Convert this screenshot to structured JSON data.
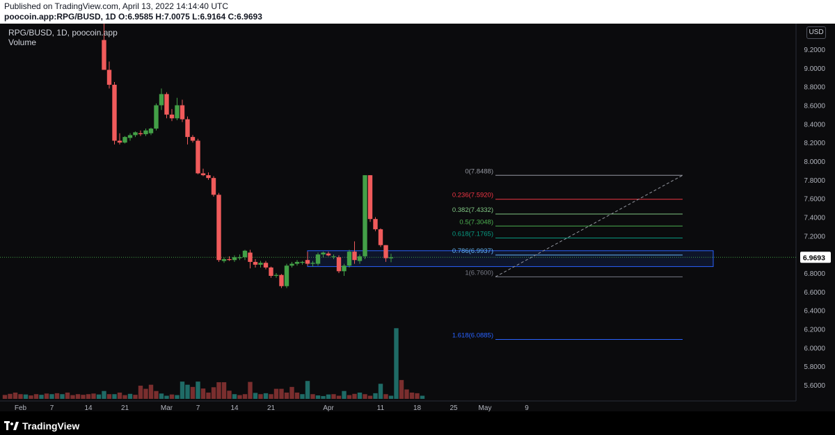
{
  "header": {
    "published": "Published on TradingView.com, April 13, 2022 14:14:40 UTC",
    "symbol_prefix": "poocoin.app:RPG/BUSD, 1D",
    "ohlc": {
      "o_label": "O:",
      "o": "6.9585",
      "h_label": "H:",
      "h": "7.0075",
      "l_label": "L:",
      "l": "6.9164",
      "c_label": "C:",
      "c": "6.9693"
    }
  },
  "legend": {
    "title": "RPG/BUSD, 1D, poocoin.app",
    "volume": "Volume"
  },
  "currency": "USD",
  "brand": "TradingView",
  "colors": {
    "up": "#26a69a",
    "down": "#ef5350",
    "candle_up": "#43a047",
    "candle_down": "#f05b5b",
    "vol_up": "#1f6b66",
    "vol_down": "#7a2e2e"
  },
  "chart_data": {
    "type": "candlestick",
    "x_ticks": [
      "Feb",
      "7",
      "14",
      "21",
      "Mar",
      "7",
      "14",
      "21",
      "Apr",
      "11",
      "18",
      "25",
      "May",
      "9"
    ],
    "y_ticks": [
      "9.2000",
      "9.0000",
      "8.8000",
      "8.6000",
      "8.4000",
      "8.2000",
      "8.0000",
      "7.8000",
      "7.6000",
      "7.4000",
      "7.2000",
      "6.8000",
      "6.6000",
      "6.4000",
      "6.2000",
      "6.0000",
      "5.8000",
      "5.6000"
    ],
    "ylim": [
      5.45,
      9.5
    ],
    "last_price": "6.9693",
    "candles": [
      {
        "d": "2022-02-17",
        "o": 9.3,
        "h": 9.5,
        "l": 8.98,
        "c": 8.98
      },
      {
        "d": "2022-02-18",
        "o": 8.98,
        "h": 9.07,
        "l": 8.78,
        "c": 8.82
      },
      {
        "d": "2022-02-19",
        "o": 8.82,
        "h": 8.85,
        "l": 8.18,
        "c": 8.22
      },
      {
        "d": "2022-02-20",
        "o": 8.22,
        "h": 8.3,
        "l": 8.18,
        "c": 8.2
      },
      {
        "d": "2022-02-21",
        "o": 8.2,
        "h": 8.27,
        "l": 8.19,
        "c": 8.26
      },
      {
        "d": "2022-02-22",
        "o": 8.25,
        "h": 8.3,
        "l": 8.22,
        "c": 8.28
      },
      {
        "d": "2022-02-23",
        "o": 8.28,
        "h": 8.32,
        "l": 8.26,
        "c": 8.31
      },
      {
        "d": "2022-02-24",
        "o": 8.3,
        "h": 8.33,
        "l": 8.27,
        "c": 8.29
      },
      {
        "d": "2022-02-25",
        "o": 8.29,
        "h": 8.35,
        "l": 8.27,
        "c": 8.33
      },
      {
        "d": "2022-02-26",
        "o": 8.3,
        "h": 8.36,
        "l": 8.28,
        "c": 8.35
      },
      {
        "d": "2022-02-27",
        "o": 8.35,
        "h": 8.62,
        "l": 8.33,
        "c": 8.6
      },
      {
        "d": "2022-02-28",
        "o": 8.6,
        "h": 8.78,
        "l": 8.55,
        "c": 8.72
      },
      {
        "d": "2022-03-01",
        "o": 8.72,
        "h": 8.74,
        "l": 8.46,
        "c": 8.5
      },
      {
        "d": "2022-03-02",
        "o": 8.5,
        "h": 8.56,
        "l": 8.43,
        "c": 8.46
      },
      {
        "d": "2022-03-03",
        "o": 8.46,
        "h": 8.68,
        "l": 8.44,
        "c": 8.6
      },
      {
        "d": "2022-03-04",
        "o": 8.6,
        "h": 8.66,
        "l": 8.42,
        "c": 8.45
      },
      {
        "d": "2022-03-05",
        "o": 8.45,
        "h": 8.48,
        "l": 8.18,
        "c": 8.26
      },
      {
        "d": "2022-03-06",
        "o": 8.26,
        "h": 8.28,
        "l": 8.2,
        "c": 8.22
      },
      {
        "d": "2022-03-07",
        "o": 8.22,
        "h": 8.24,
        "l": 7.86,
        "c": 7.87
      },
      {
        "d": "2022-03-08",
        "o": 7.87,
        "h": 7.92,
        "l": 7.84,
        "c": 7.85
      },
      {
        "d": "2022-03-09",
        "o": 7.85,
        "h": 7.88,
        "l": 7.8,
        "c": 7.82
      },
      {
        "d": "2022-03-10",
        "o": 7.82,
        "h": 7.84,
        "l": 7.62,
        "c": 7.64
      },
      {
        "d": "2022-03-11",
        "o": 7.64,
        "h": 7.66,
        "l": 6.92,
        "c": 6.94
      },
      {
        "d": "2022-03-12",
        "o": 6.93,
        "h": 6.97,
        "l": 6.91,
        "c": 6.95
      },
      {
        "d": "2022-03-13",
        "o": 6.95,
        "h": 6.98,
        "l": 6.93,
        "c": 6.94
      },
      {
        "d": "2022-03-14",
        "o": 6.94,
        "h": 6.99,
        "l": 6.92,
        "c": 6.97
      },
      {
        "d": "2022-03-15",
        "o": 6.96,
        "h": 7.0,
        "l": 6.94,
        "c": 6.97
      },
      {
        "d": "2022-03-16",
        "o": 6.97,
        "h": 7.05,
        "l": 6.94,
        "c": 7.04
      },
      {
        "d": "2022-03-17",
        "o": 7.02,
        "h": 7.05,
        "l": 6.85,
        "c": 6.92
      },
      {
        "d": "2022-03-18",
        "o": 6.92,
        "h": 6.95,
        "l": 6.86,
        "c": 6.89
      },
      {
        "d": "2022-03-19",
        "o": 6.89,
        "h": 6.93,
        "l": 6.86,
        "c": 6.91
      },
      {
        "d": "2022-03-20",
        "o": 6.91,
        "h": 6.93,
        "l": 6.84,
        "c": 6.86
      },
      {
        "d": "2022-03-21",
        "o": 6.86,
        "h": 6.87,
        "l": 6.75,
        "c": 6.77
      },
      {
        "d": "2022-03-22",
        "o": 6.77,
        "h": 6.8,
        "l": 6.75,
        "c": 6.78
      },
      {
        "d": "2022-03-23",
        "o": 6.78,
        "h": 6.79,
        "l": 6.64,
        "c": 6.66
      },
      {
        "d": "2022-03-24",
        "o": 6.66,
        "h": 6.9,
        "l": 6.64,
        "c": 6.88
      },
      {
        "d": "2022-03-25",
        "o": 6.88,
        "h": 6.92,
        "l": 6.86,
        "c": 6.9
      },
      {
        "d": "2022-03-26",
        "o": 6.9,
        "h": 6.94,
        "l": 6.88,
        "c": 6.92
      },
      {
        "d": "2022-03-27",
        "o": 6.91,
        "h": 6.93,
        "l": 6.89,
        "c": 6.92
      },
      {
        "d": "2022-03-28",
        "o": 6.94,
        "h": 7.03,
        "l": 6.88,
        "c": 6.9
      },
      {
        "d": "2022-03-29",
        "o": 6.9,
        "h": 6.93,
        "l": 6.87,
        "c": 6.91
      },
      {
        "d": "2022-03-30",
        "o": 6.9,
        "h": 7.02,
        "l": 6.88,
        "c": 7.0
      },
      {
        "d": "2022-03-31",
        "o": 7.0,
        "h": 7.03,
        "l": 6.97,
        "c": 7.02
      },
      {
        "d": "2022-04-01",
        "o": 7.01,
        "h": 7.03,
        "l": 6.98,
        "c": 6.99
      },
      {
        "d": "2022-04-02",
        "o": 6.98,
        "h": 7.0,
        "l": 6.95,
        "c": 6.98
      },
      {
        "d": "2022-04-03",
        "o": 6.97,
        "h": 6.99,
        "l": 6.8,
        "c": 6.82
      },
      {
        "d": "2022-04-04",
        "o": 6.82,
        "h": 6.9,
        "l": 6.77,
        "c": 6.88
      },
      {
        "d": "2022-04-05",
        "o": 6.88,
        "h": 7.05,
        "l": 6.86,
        "c": 7.03
      },
      {
        "d": "2022-04-06",
        "o": 7.03,
        "h": 7.14,
        "l": 6.9,
        "c": 6.94
      },
      {
        "d": "2022-04-07",
        "o": 6.93,
        "h": 7.0,
        "l": 6.9,
        "c": 6.98
      },
      {
        "d": "2022-04-08",
        "o": 6.98,
        "h": 7.85,
        "l": 6.95,
        "c": 7.85
      },
      {
        "d": "2022-04-09",
        "o": 7.85,
        "h": 7.85,
        "l": 7.35,
        "c": 7.38
      },
      {
        "d": "2022-04-10",
        "o": 7.38,
        "h": 7.4,
        "l": 7.25,
        "c": 7.27
      },
      {
        "d": "2022-04-11",
        "o": 7.27,
        "h": 7.28,
        "l": 7.08,
        "c": 7.1
      },
      {
        "d": "2022-04-12",
        "o": 7.1,
        "h": 7.1,
        "l": 6.92,
        "c": 6.96
      },
      {
        "d": "2022-04-13",
        "o": 6.9585,
        "h": 7.0075,
        "l": 6.9164,
        "c": 6.9693
      }
    ],
    "volume": [
      {
        "d": "2022-01-29",
        "v": 0.25,
        "up": false
      },
      {
        "d": "2022-01-30",
        "v": 0.32,
        "up": false
      },
      {
        "d": "2022-01-31",
        "v": 0.4,
        "up": false
      },
      {
        "d": "2022-02-01",
        "v": 0.3,
        "up": false
      },
      {
        "d": "2022-02-02",
        "v": 0.28,
        "up": true
      },
      {
        "d": "2022-02-03",
        "v": 0.22,
        "up": false
      },
      {
        "d": "2022-02-04",
        "v": 0.3,
        "up": false
      },
      {
        "d": "2022-02-05",
        "v": 0.26,
        "up": true
      },
      {
        "d": "2022-02-06",
        "v": 0.34,
        "up": false
      },
      {
        "d": "2022-02-07",
        "v": 0.3,
        "up": true
      },
      {
        "d": "2022-02-08",
        "v": 0.36,
        "up": false
      },
      {
        "d": "2022-02-09",
        "v": 0.3,
        "up": true
      },
      {
        "d": "2022-02-10",
        "v": 0.4,
        "up": false
      },
      {
        "d": "2022-02-11",
        "v": 0.24,
        "up": false
      },
      {
        "d": "2022-02-12",
        "v": 0.3,
        "up": false
      },
      {
        "d": "2022-02-13",
        "v": 0.26,
        "up": false
      },
      {
        "d": "2022-02-14",
        "v": 0.3,
        "up": false
      },
      {
        "d": "2022-02-15",
        "v": 0.34,
        "up": false
      },
      {
        "d": "2022-02-16",
        "v": 0.28,
        "up": true
      },
      {
        "d": "2022-02-17",
        "v": 0.5,
        "up": true
      },
      {
        "d": "2022-02-18",
        "v": 0.3,
        "up": false
      },
      {
        "d": "2022-02-19",
        "v": 0.3,
        "up": true
      },
      {
        "d": "2022-02-20",
        "v": 0.4,
        "up": false
      },
      {
        "d": "2022-02-21",
        "v": 0.24,
        "up": false
      },
      {
        "d": "2022-02-22",
        "v": 0.32,
        "up": true
      },
      {
        "d": "2022-02-23",
        "v": 0.26,
        "up": false
      },
      {
        "d": "2022-02-24",
        "v": 0.84,
        "up": false
      },
      {
        "d": "2022-02-25",
        "v": 0.64,
        "up": false
      },
      {
        "d": "2022-02-26",
        "v": 0.9,
        "up": false
      },
      {
        "d": "2022-02-27",
        "v": 0.5,
        "up": false
      },
      {
        "d": "2022-02-28",
        "v": 0.34,
        "up": true
      },
      {
        "d": "2022-03-01",
        "v": 0.2,
        "up": true
      },
      {
        "d": "2022-03-02",
        "v": 0.28,
        "up": false
      },
      {
        "d": "2022-03-03",
        "v": 0.24,
        "up": true
      },
      {
        "d": "2022-03-04",
        "v": 1.1,
        "up": true
      },
      {
        "d": "2022-03-05",
        "v": 0.9,
        "up": true
      },
      {
        "d": "2022-03-06",
        "v": 0.76,
        "up": false
      },
      {
        "d": "2022-03-07",
        "v": 1.1,
        "up": true
      },
      {
        "d": "2022-03-08",
        "v": 0.66,
        "up": false
      },
      {
        "d": "2022-03-09",
        "v": 0.4,
        "up": false
      },
      {
        "d": "2022-03-10",
        "v": 0.74,
        "up": false
      },
      {
        "d": "2022-03-11",
        "v": 1.06,
        "up": false
      },
      {
        "d": "2022-03-12",
        "v": 1.06,
        "up": false
      },
      {
        "d": "2022-03-13",
        "v": 0.52,
        "up": false
      },
      {
        "d": "2022-03-14",
        "v": 0.3,
        "up": true
      },
      {
        "d": "2022-03-15",
        "v": 0.24,
        "up": false
      },
      {
        "d": "2022-03-16",
        "v": 0.3,
        "up": false
      },
      {
        "d": "2022-03-17",
        "v": 1.08,
        "up": false
      },
      {
        "d": "2022-03-18",
        "v": 0.38,
        "up": true
      },
      {
        "d": "2022-03-19",
        "v": 0.3,
        "up": false
      },
      {
        "d": "2022-03-20",
        "v": 0.36,
        "up": true
      },
      {
        "d": "2022-03-21",
        "v": 0.3,
        "up": false
      },
      {
        "d": "2022-03-22",
        "v": 0.64,
        "up": false
      },
      {
        "d": "2022-03-23",
        "v": 0.64,
        "up": false
      },
      {
        "d": "2022-03-24",
        "v": 0.4,
        "up": false
      },
      {
        "d": "2022-03-25",
        "v": 0.76,
        "up": false
      },
      {
        "d": "2022-03-26",
        "v": 0.4,
        "up": false
      },
      {
        "d": "2022-03-27",
        "v": 0.3,
        "up": true
      },
      {
        "d": "2022-03-28",
        "v": 1.14,
        "up": true
      },
      {
        "d": "2022-03-29",
        "v": 0.3,
        "up": false
      },
      {
        "d": "2022-03-30",
        "v": 0.22,
        "up": true
      },
      {
        "d": "2022-03-31",
        "v": 0.18,
        "up": true
      },
      {
        "d": "2022-04-01",
        "v": 0.28,
        "up": true
      },
      {
        "d": "2022-04-02",
        "v": 0.3,
        "up": false
      },
      {
        "d": "2022-04-03",
        "v": 0.2,
        "up": false
      },
      {
        "d": "2022-04-04",
        "v": 0.5,
        "up": true
      },
      {
        "d": "2022-04-05",
        "v": 0.24,
        "up": false
      },
      {
        "d": "2022-04-06",
        "v": 0.32,
        "up": false
      },
      {
        "d": "2022-04-07",
        "v": 0.4,
        "up": true
      },
      {
        "d": "2022-04-08",
        "v": 0.3,
        "up": false
      },
      {
        "d": "2022-04-09",
        "v": 0.2,
        "up": false
      },
      {
        "d": "2022-04-10",
        "v": 0.36,
        "up": true
      },
      {
        "d": "2022-04-11",
        "v": 0.96,
        "up": true
      },
      {
        "d": "2022-04-12",
        "v": 0.3,
        "up": false
      },
      {
        "d": "2022-04-13",
        "v": 0.2,
        "up": true
      },
      {
        "d": "2022-04-14",
        "v": 4.5,
        "up": true
      },
      {
        "d": "2022-04-15",
        "v": 1.2,
        "up": false
      },
      {
        "d": "2022-04-16",
        "v": 0.6,
        "up": false
      },
      {
        "d": "2022-04-17",
        "v": 0.4,
        "up": false
      },
      {
        "d": "2022-04-18",
        "v": 0.36,
        "up": false
      },
      {
        "d": "2022-04-19",
        "v": 0.2,
        "up": true
      }
    ],
    "fibonacci": [
      {
        "label": "0(7.8488)",
        "value": 7.8488,
        "color": "#9598a1"
      },
      {
        "label": "0.236(7.5920)",
        "value": 7.592,
        "color": "#f23645"
      },
      {
        "label": "0.382(7.4332)",
        "value": 7.4332,
        "color": "#81c784"
      },
      {
        "label": "0.5(7.3048)",
        "value": 7.3048,
        "color": "#4caf50"
      },
      {
        "label": "0.618(7.1765)",
        "value": 7.1765,
        "color": "#089981"
      },
      {
        "label": "0.786(6.9937)",
        "value": 6.9937,
        "color": "#64b5f6"
      },
      {
        "label": "1(6.7600)",
        "value": 6.76,
        "color": "#787b86"
      },
      {
        "label": "1.618(6.0885)",
        "value": 6.0885,
        "color": "#2962ff"
      }
    ],
    "zone": {
      "top": 7.04,
      "bottom": 6.87,
      "color": "#2962ff"
    }
  }
}
